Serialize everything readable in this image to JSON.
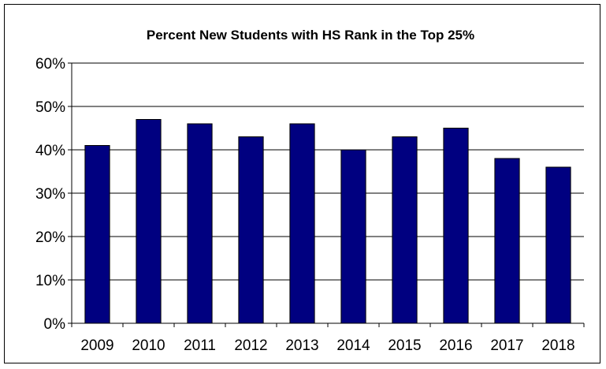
{
  "chart_data": {
    "type": "bar",
    "title": "Percent New Students with HS Rank in the Top 25%",
    "xlabel": "",
    "ylabel": "",
    "categories": [
      "2009",
      "2010",
      "2011",
      "2012",
      "2013",
      "2014",
      "2015",
      "2016",
      "2017",
      "2018"
    ],
    "values": [
      41,
      47,
      46,
      43,
      46,
      40,
      43,
      45,
      38,
      36
    ],
    "ylim": [
      0,
      60
    ],
    "yticks": [
      0,
      10,
      20,
      30,
      40,
      50,
      60
    ],
    "ytick_labels": [
      "0%",
      "10%",
      "20%",
      "30%",
      "40%",
      "50%",
      "60%"
    ],
    "grid": true,
    "legend": "none",
    "bar_color": "#000080"
  }
}
